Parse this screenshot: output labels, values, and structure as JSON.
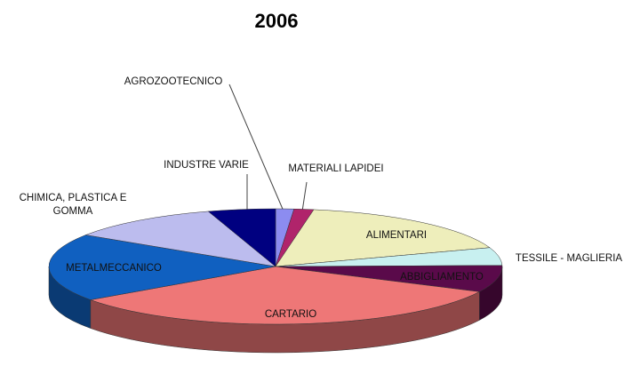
{
  "chart_data": {
    "type": "pie",
    "title": "2006",
    "categories": [
      "AGROZOOTECNICO",
      "MATERIALI LAPIDEI",
      "ALIMENTARI",
      "TESSILE - MAGLIERIA",
      "ABBIGLIAMENTO",
      "CARTARIO",
      "METALMECCANICO",
      "CHIMICA, PLASTICA E GOMMA",
      "INDUSTRE VARIE"
    ],
    "values": [
      1.3,
      1.4,
      17,
      5,
      7.5,
      33,
      19,
      11,
      4.8
    ],
    "colors": [
      "#8c8cf0",
      "#b0246b",
      "#eeeebb",
      "#c8f0f0",
      "#5a0a4a",
      "#ee7777",
      "#1060c0",
      "#bcbcee",
      "#000080"
    ]
  }
}
